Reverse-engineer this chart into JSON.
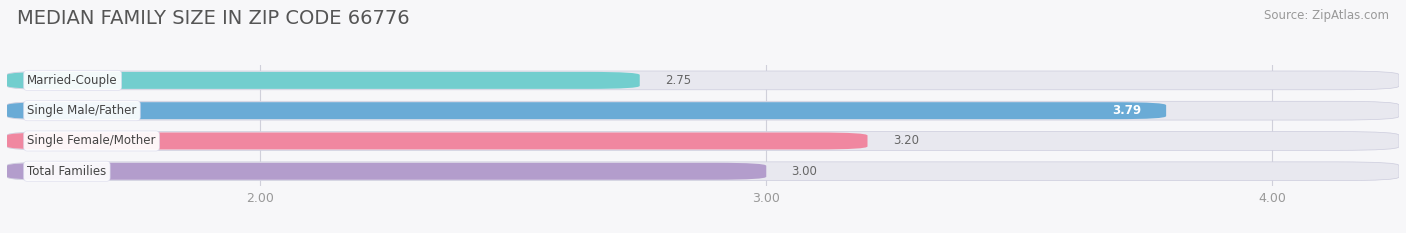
{
  "title": "MEDIAN FAMILY SIZE IN ZIP CODE 66776",
  "source": "Source: ZipAtlas.com",
  "categories": [
    "Married-Couple",
    "Single Male/Father",
    "Single Female/Mother",
    "Total Families"
  ],
  "values": [
    2.75,
    3.79,
    3.2,
    3.0
  ],
  "bar_colors": [
    "#72cece",
    "#6aabd6",
    "#f087a0",
    "#b39dcc"
  ],
  "bar_bg_color": "#e8e8ef",
  "xlim": [
    1.5,
    4.25
  ],
  "xmin": 1.5,
  "xmax": 4.25,
  "xticks": [
    2.0,
    3.0,
    4.0
  ],
  "xtick_labels": [
    "2.00",
    "3.00",
    "4.00"
  ],
  "background_color": "#f7f7f9",
  "bar_height": 0.62,
  "label_fontsize": 8.5,
  "value_fontsize": 8.5,
  "title_fontsize": 14,
  "source_fontsize": 8.5,
  "grid_color": "#d0d0da"
}
